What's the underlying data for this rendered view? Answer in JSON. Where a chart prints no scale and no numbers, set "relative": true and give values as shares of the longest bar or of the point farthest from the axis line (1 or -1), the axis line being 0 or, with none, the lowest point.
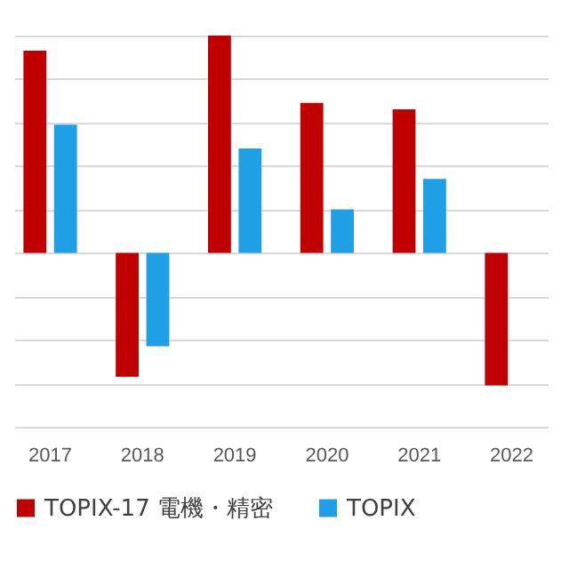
{
  "chart_data": {
    "type": "bar",
    "relative": true,
    "categories": [
      "2017",
      "2018",
      "2019",
      "2020",
      "2021",
      "2022"
    ],
    "series": [
      {
        "name": "TOPIX-17 電機・精密",
        "color": "#c00000",
        "values": [
          0.93,
          -0.57,
          1,
          0.69,
          0.66,
          -0.61
        ]
      },
      {
        "name": "TOPIX",
        "color": "#1f9fe6",
        "values": [
          0.59,
          -0.43,
          0.48,
          0.2,
          0.34,
          null
        ]
      }
    ],
    "grid": "y",
    "legend": "bottom"
  }
}
